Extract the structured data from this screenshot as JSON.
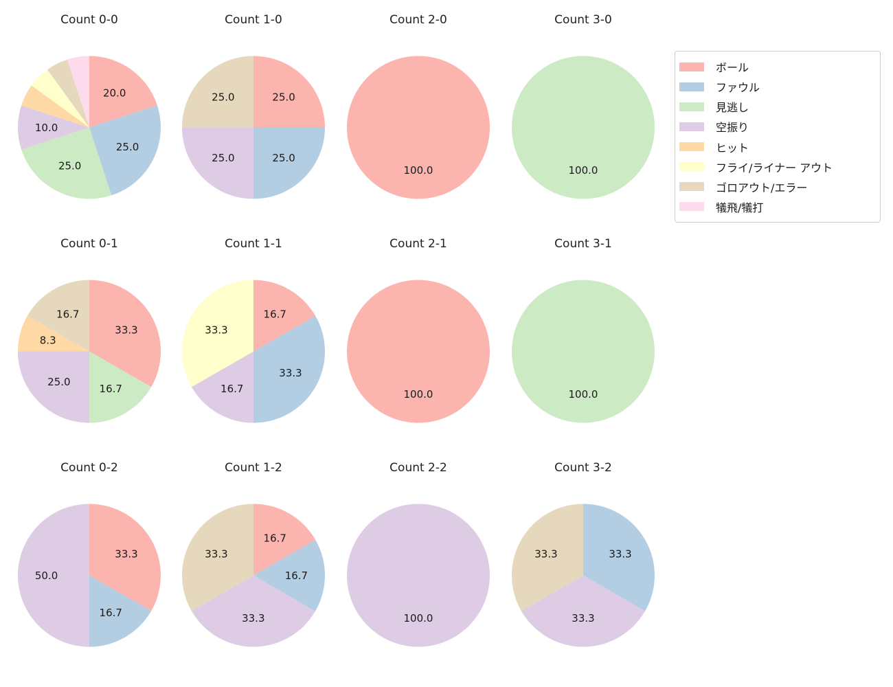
{
  "legend": {
    "items": [
      {
        "label": "ボール",
        "color": "#fbb4ae"
      },
      {
        "label": "ファウル",
        "color": "#b3cde3"
      },
      {
        "label": "見逃し",
        "color": "#ccebc5"
      },
      {
        "label": "空振り",
        "color": "#decbe4"
      },
      {
        "label": "ヒット",
        "color": "#fed9a6"
      },
      {
        "label": "フライ/ライナー アウト",
        "color": "#ffffcc"
      },
      {
        "label": "ゴロアウト/エラー",
        "color": "#e5d8bd"
      },
      {
        "label": "犠飛/犠打",
        "color": "#fddaec"
      }
    ]
  },
  "chart_data": [
    {
      "type": "pie",
      "title": "Count 0-0",
      "start_angle_deg": 90,
      "direction": "clockwise",
      "slices": [
        {
          "label": "ボール",
          "value": 20.0,
          "pct": "20.0",
          "color": "#fbb4ae"
        },
        {
          "label": "ファウル",
          "value": 25.0,
          "pct": "25.0",
          "color": "#b3cde3"
        },
        {
          "label": "見逃し",
          "value": 25.0,
          "pct": "25.0",
          "color": "#ccebc5"
        },
        {
          "label": "空振り",
          "value": 10.0,
          "pct": "10.0",
          "color": "#decbe4"
        },
        {
          "label": "ヒット",
          "value": 5.0,
          "pct": "",
          "color": "#fed9a6"
        },
        {
          "label": "フライ/ライナー アウト",
          "value": 5.0,
          "pct": "",
          "color": "#ffffcc"
        },
        {
          "label": "ゴロアウト/エラー",
          "value": 5.0,
          "pct": "",
          "color": "#e5d8bd"
        },
        {
          "label": "犠飛/犠打",
          "value": 5.0,
          "pct": "",
          "color": "#fddaec"
        }
      ]
    },
    {
      "type": "pie",
      "title": "Count 1-0",
      "start_angle_deg": 90,
      "direction": "clockwise",
      "slices": [
        {
          "label": "ボール",
          "value": 25.0,
          "pct": "25.0",
          "color": "#fbb4ae"
        },
        {
          "label": "ファウル",
          "value": 25.0,
          "pct": "25.0",
          "color": "#b3cde3"
        },
        {
          "label": "空振り",
          "value": 25.0,
          "pct": "25.0",
          "color": "#decbe4"
        },
        {
          "label": "ゴロアウト/エラー",
          "value": 25.0,
          "pct": "25.0",
          "color": "#e5d8bd"
        }
      ]
    },
    {
      "type": "pie",
      "title": "Count 2-0",
      "start_angle_deg": 90,
      "direction": "clockwise",
      "slices": [
        {
          "label": "ボール",
          "value": 100.0,
          "pct": "100.0",
          "color": "#fbb4ae"
        }
      ]
    },
    {
      "type": "pie",
      "title": "Count 3-0",
      "start_angle_deg": 90,
      "direction": "clockwise",
      "slices": [
        {
          "label": "見逃し",
          "value": 100.0,
          "pct": "100.0",
          "color": "#ccebc5"
        }
      ]
    },
    {
      "type": "pie",
      "title": "Count 0-1",
      "start_angle_deg": 90,
      "direction": "clockwise",
      "slices": [
        {
          "label": "ボール",
          "value": 33.3,
          "pct": "33.3",
          "color": "#fbb4ae"
        },
        {
          "label": "見逃し",
          "value": 16.7,
          "pct": "16.7",
          "color": "#ccebc5"
        },
        {
          "label": "空振り",
          "value": 25.0,
          "pct": "25.0",
          "color": "#decbe4"
        },
        {
          "label": "ヒット",
          "value": 8.3,
          "pct": "8.3",
          "color": "#fed9a6"
        },
        {
          "label": "ゴロアウト/エラー",
          "value": 16.7,
          "pct": "16.7",
          "color": "#e5d8bd"
        }
      ]
    },
    {
      "type": "pie",
      "title": "Count 1-1",
      "start_angle_deg": 90,
      "direction": "clockwise",
      "slices": [
        {
          "label": "ボール",
          "value": 16.7,
          "pct": "16.7",
          "color": "#fbb4ae"
        },
        {
          "label": "ファウル",
          "value": 33.3,
          "pct": "33.3",
          "color": "#b3cde3"
        },
        {
          "label": "空振り",
          "value": 16.7,
          "pct": "16.7",
          "color": "#decbe4"
        },
        {
          "label": "フライ/ライナー アウト",
          "value": 33.3,
          "pct": "33.3",
          "color": "#ffffcc"
        }
      ]
    },
    {
      "type": "pie",
      "title": "Count 2-1",
      "start_angle_deg": 90,
      "direction": "clockwise",
      "slices": [
        {
          "label": "ボール",
          "value": 100.0,
          "pct": "100.0",
          "color": "#fbb4ae"
        }
      ]
    },
    {
      "type": "pie",
      "title": "Count 3-1",
      "start_angle_deg": 90,
      "direction": "clockwise",
      "slices": [
        {
          "label": "見逃し",
          "value": 100.0,
          "pct": "100.0",
          "color": "#ccebc5"
        }
      ]
    },
    {
      "type": "pie",
      "title": "Count 0-2",
      "start_angle_deg": 90,
      "direction": "clockwise",
      "slices": [
        {
          "label": "ボール",
          "value": 33.3,
          "pct": "33.3",
          "color": "#fbb4ae"
        },
        {
          "label": "ファウル",
          "value": 16.7,
          "pct": "16.7",
          "color": "#b3cde3"
        },
        {
          "label": "空振り",
          "value": 50.0,
          "pct": "50.0",
          "color": "#decbe4"
        }
      ]
    },
    {
      "type": "pie",
      "title": "Count 1-2",
      "start_angle_deg": 90,
      "direction": "clockwise",
      "slices": [
        {
          "label": "ボール",
          "value": 16.7,
          "pct": "16.7",
          "color": "#fbb4ae"
        },
        {
          "label": "ファウル",
          "value": 16.7,
          "pct": "16.7",
          "color": "#b3cde3"
        },
        {
          "label": "空振り",
          "value": 33.3,
          "pct": "33.3",
          "color": "#decbe4"
        },
        {
          "label": "ゴロアウト/エラー",
          "value": 33.3,
          "pct": "33.3",
          "color": "#e5d8bd"
        }
      ]
    },
    {
      "type": "pie",
      "title": "Count 2-2",
      "start_angle_deg": 90,
      "direction": "clockwise",
      "slices": [
        {
          "label": "空振り",
          "value": 100.0,
          "pct": "100.0",
          "color": "#decbe4"
        }
      ]
    },
    {
      "type": "pie",
      "title": "Count 3-2",
      "start_angle_deg": 90,
      "direction": "clockwise",
      "slices": [
        {
          "label": "ファウル",
          "value": 33.3,
          "pct": "33.3",
          "color": "#b3cde3"
        },
        {
          "label": "空振り",
          "value": 33.3,
          "pct": "33.3",
          "color": "#decbe4"
        },
        {
          "label": "ゴロアウト/エラー",
          "value": 33.3,
          "pct": "33.3",
          "color": "#e5d8bd"
        }
      ]
    }
  ]
}
